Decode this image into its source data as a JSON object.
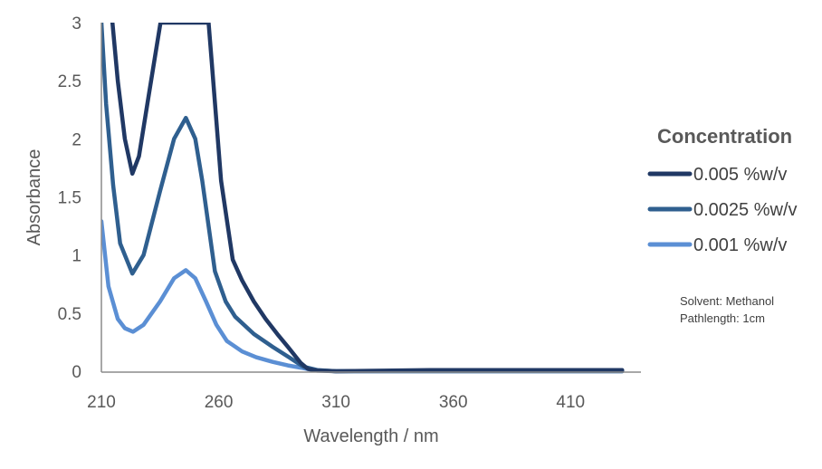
{
  "chart_data": {
    "type": "line",
    "title": "",
    "xlabel": "Wavelength / nm",
    "ylabel": "Absorbance",
    "xlim": [
      210,
      440
    ],
    "ylim": [
      0,
      3
    ],
    "xticks": [
      210,
      260,
      310,
      360,
      410
    ],
    "yticks": [
      0,
      0.5,
      1,
      1.5,
      2,
      2.5,
      3
    ],
    "ytick_labels": [
      "0",
      "0.5",
      "1",
      "1.5",
      "2",
      "2.5",
      "3"
    ],
    "xtick_labels": [
      "210",
      "260",
      "310",
      "360",
      "410"
    ],
    "grid": false,
    "legend": {
      "title": "Concentration",
      "placement": "right"
    },
    "annotations": [
      "Solvent: Methanol",
      "Pathlength: 1cm"
    ],
    "series": [
      {
        "name": "0.005 %w/v",
        "color": "#203864",
        "x": [
          214.7,
          217,
          220,
          223.2,
          226,
          230,
          235.2,
          255.7,
          257,
          261,
          266,
          270,
          275,
          280,
          285,
          289.5,
          295,
          298,
          302,
          310,
          350,
          432
        ],
        "y": [
          3.0,
          2.5,
          2.0,
          1.7,
          1.85,
          2.35,
          3.0,
          3.0,
          2.67,
          1.64,
          0.96,
          0.78,
          0.6,
          0.45,
          0.32,
          0.21,
          0.07,
          0.02,
          0.005,
          0.0,
          0.01,
          0.01
        ]
      },
      {
        "name": "0.0025 %w/v",
        "color": "#2F5F8F",
        "x": [
          210,
          212,
          215,
          218,
          223.2,
          228,
          235,
          241,
          246,
          250,
          253,
          258.4,
          263,
          267,
          275,
          283,
          290,
          296,
          302,
          310,
          432
        ],
        "y": [
          3.0,
          2.3,
          1.6,
          1.1,
          0.84,
          1.0,
          1.55,
          2.0,
          2.18,
          2.0,
          1.64,
          0.86,
          0.6,
          0.47,
          0.32,
          0.21,
          0.12,
          0.04,
          0.01,
          0.0,
          0.0
        ]
      },
      {
        "name": "0.001 %w/v",
        "color": "#5B8FD4",
        "x": [
          210,
          213,
          217,
          220,
          223.5,
          228,
          235,
          241,
          246,
          250,
          254.6,
          259,
          263.5,
          270,
          276,
          283,
          289.5,
          295,
          300,
          310,
          432
        ],
        "y": [
          1.29,
          0.73,
          0.45,
          0.37,
          0.34,
          0.4,
          0.6,
          0.8,
          0.87,
          0.8,
          0.6,
          0.4,
          0.26,
          0.17,
          0.12,
          0.08,
          0.05,
          0.03,
          0.01,
          0.0,
          0.0
        ]
      }
    ]
  }
}
